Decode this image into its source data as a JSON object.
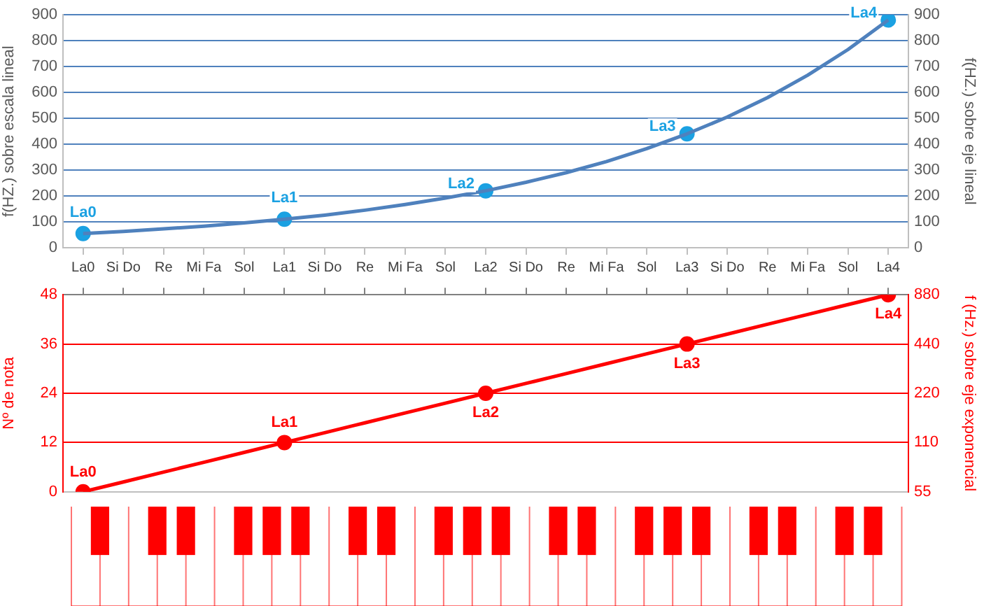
{
  "chart_data": [
    {
      "type": "line",
      "ylabel": "f(HZ.) sobre escala lineal",
      "y2label": "f(HZ.) sobre eje lineal",
      "categories": [
        "La0",
        "Si Do",
        "Re",
        "Mi Fa",
        "Sol",
        "La1",
        "Si Do",
        "Re",
        "Mi Fa",
        "Sol",
        "La2",
        "Si Do",
        "Re",
        "Mi Fa",
        "Sol",
        "La3",
        "Si Do",
        "Re",
        "Mi Fa",
        "Sol",
        "La4"
      ],
      "ylim": [
        0,
        900
      ],
      "yticks": [
        0,
        100,
        200,
        300,
        400,
        500,
        600,
        700,
        800,
        900
      ],
      "y2lim": [
        0,
        900
      ],
      "y2ticks": [
        0,
        100,
        200,
        300,
        400,
        500,
        600,
        700,
        800,
        900
      ],
      "grid": "y",
      "series": [
        {
          "type": "line",
          "color": "#4f81bd",
          "marker": "none",
          "values": [
            55,
            63,
            73,
            83,
            96,
            110,
            126,
            145,
            167,
            192,
            220,
            253,
            290,
            333,
            383,
            440,
            505,
            580,
            667,
            766,
            880
          ]
        },
        {
          "type": "scatter",
          "color": "#1ba1e2",
          "marker": "circle",
          "values": [
            55,
            null,
            null,
            null,
            null,
            110,
            null,
            null,
            null,
            null,
            220,
            null,
            null,
            null,
            null,
            440,
            null,
            null,
            null,
            null,
            880
          ]
        }
      ],
      "annotations": [
        {
          "text": "La0",
          "x": "La0",
          "y": 55
        },
        {
          "text": "La1",
          "x": "La1",
          "y": 110
        },
        {
          "text": "La2",
          "x": "La2",
          "y": 220
        },
        {
          "text": "La3",
          "x": "La3",
          "y": 440
        },
        {
          "text": "La4",
          "x": "La4",
          "y": 880
        }
      ]
    },
    {
      "type": "line",
      "ylabel": "Nº de nota",
      "y2label": "f (Hz.) sobre eje exponencial",
      "categories": [
        "La0",
        "Si Do",
        "Re",
        "Mi Fa",
        "Sol",
        "La1",
        "Si Do",
        "Re",
        "Mi Fa",
        "Sol",
        "La2",
        "Si Do",
        "Re",
        "Mi Fa",
        "Sol",
        "La3",
        "Si Do",
        "Re",
        "Mi Fa",
        "Sol",
        "La4"
      ],
      "ylim": [
        0,
        48
      ],
      "yticks": [
        0,
        12,
        24,
        36,
        48
      ],
      "y2lim": [
        55,
        880
      ],
      "y2ticks": [
        55,
        110,
        220,
        440,
        880
      ],
      "log": "y2",
      "grid": "y",
      "tick_labels": "y",
      "series": [
        {
          "type": "line",
          "color": "#ff0000",
          "marker": "none",
          "values": [
            0,
            2.4,
            4.8,
            7.2,
            9.6,
            12,
            14.4,
            16.8,
            19.2,
            21.6,
            24,
            26.4,
            28.8,
            31.2,
            33.6,
            36,
            38.4,
            40.8,
            43.2,
            45.6,
            48
          ]
        },
        {
          "type": "scatter",
          "color": "#ff0000",
          "marker": "circle",
          "values": [
            0,
            null,
            null,
            null,
            null,
            12,
            null,
            null,
            null,
            null,
            24,
            null,
            null,
            null,
            null,
            36,
            null,
            null,
            null,
            null,
            48
          ]
        }
      ],
      "annotations": [
        {
          "text": "La0",
          "x": "La0",
          "y": 0
        },
        {
          "text": "La1",
          "x": "La1",
          "y": 12
        },
        {
          "text": "La2",
          "x": "La2",
          "y": 24
        },
        {
          "text": "La3",
          "x": "La3",
          "y": 36
        },
        {
          "text": "La4",
          "x": "La4",
          "y": 48
        }
      ]
    }
  ]
}
